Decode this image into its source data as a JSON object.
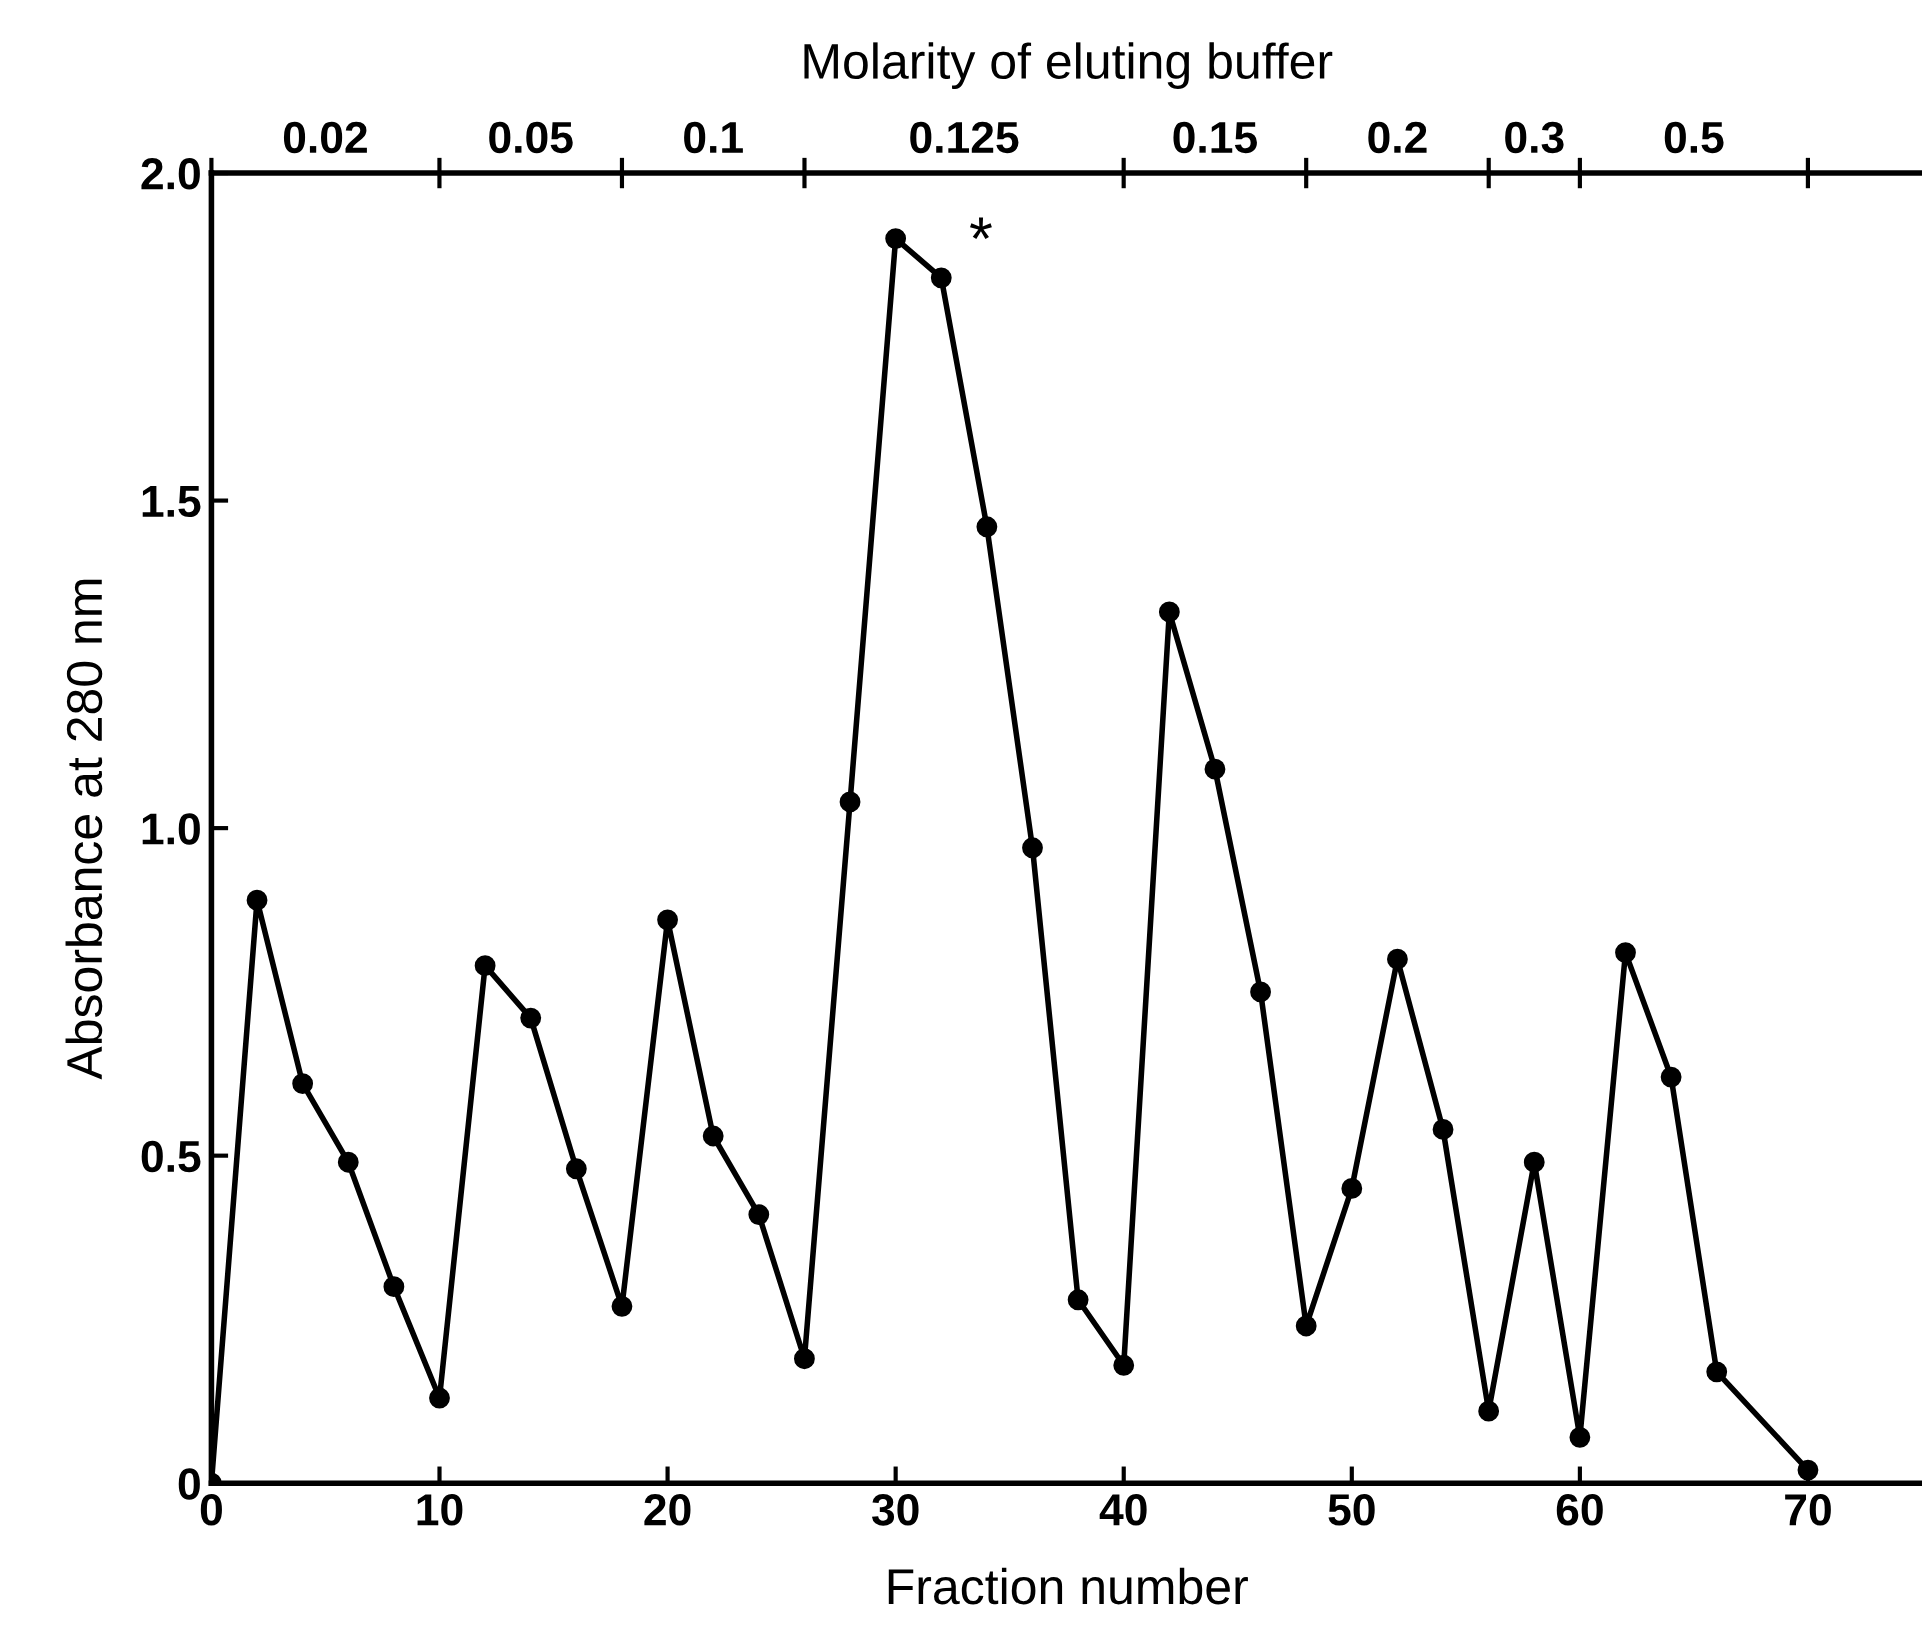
{
  "chart_data": {
    "type": "line",
    "title": "Molarity of eluting buffer",
    "xlabel": "Fraction number",
    "ylabel": "Absorbance at 280 nm",
    "x": [
      0,
      2,
      4,
      6,
      8,
      10,
      12,
      14,
      16,
      18,
      20,
      22,
      24,
      26,
      28,
      30,
      32,
      34,
      36,
      38,
      40,
      42,
      44,
      46,
      48,
      50,
      52,
      54,
      56,
      58,
      60,
      62,
      64,
      66,
      70
    ],
    "series": [
      {
        "color": "#000000",
        "values": [
          0.0,
          0.89,
          0.61,
          0.49,
          0.3,
          0.13,
          0.79,
          0.71,
          0.48,
          0.27,
          0.86,
          0.53,
          0.41,
          0.19,
          1.04,
          1.9,
          1.84,
          1.46,
          0.97,
          0.28,
          0.18,
          1.33,
          1.09,
          0.75,
          0.24,
          0.45,
          0.8,
          0.54,
          0.11,
          0.49,
          0.07,
          0.81,
          0.62,
          0.17,
          0.02
        ]
      }
    ],
    "xlim": [
      0,
      75
    ],
    "ylim": [
      0,
      2.0
    ],
    "xticks": [
      0,
      10,
      20,
      30,
      40,
      50,
      60,
      70
    ],
    "yticks": [
      0,
      {
        "value": 0.5,
        "label": "0.5"
      },
      {
        "value": 1.0,
        "label": "1.0"
      },
      {
        "value": 1.5,
        "label": "1.5"
      },
      {
        "value": 2.0,
        "label": "2.0"
      }
    ],
    "annotations": [
      {
        "text": "*",
        "x": 32,
        "y": 1.84
      },
      "0.02",
      "0.05",
      "0.1",
      "0.125",
      "0.15",
      "0.2",
      "0.3",
      "0.5"
    ],
    "marker": "circle",
    "line_style": "solid",
    "grid": false,
    "legend": false
  }
}
